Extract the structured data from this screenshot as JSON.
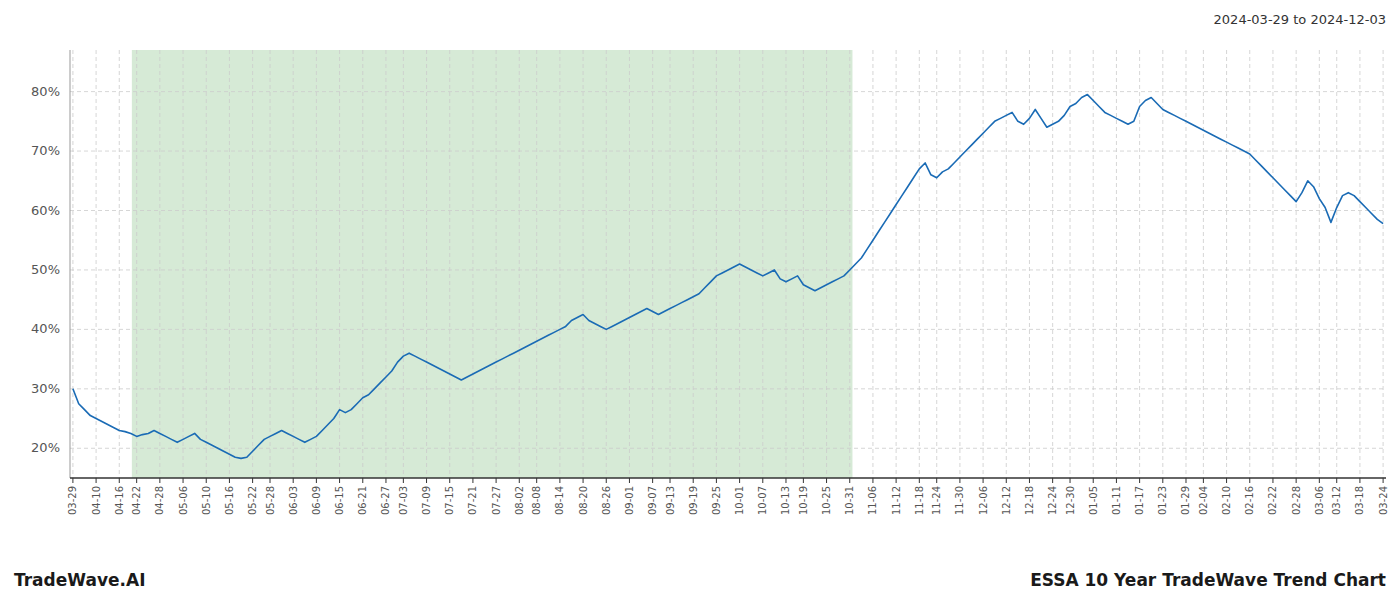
{
  "chart_data": {
    "type": "line",
    "title": "ESSA 10 Year TradeWave Trend Chart",
    "subtitle": "2024-03-29 to 2024-12-03",
    "annotations": [
      "TradeWave.AI"
    ],
    "color": "#1a6bb5",
    "grid": true,
    "ylim": [
      15,
      87
    ],
    "yticks": [
      {
        "value": 20,
        "label": "20%"
      },
      {
        "value": 30,
        "label": "30%"
      },
      {
        "value": 40,
        "label": "40%"
      },
      {
        "value": 50,
        "label": "50%"
      },
      {
        "value": 60,
        "label": "60%"
      },
      {
        "value": 70,
        "label": "70%"
      },
      {
        "value": 80,
        "label": "80%"
      }
    ],
    "shaded_region": {
      "from": 10.17,
      "to": 134.47,
      "color": "#d6ead6"
    },
    "categories": [
      "03-29",
      null,
      null,
      null,
      "04-10",
      null,
      null,
      null,
      "04-16",
      null,
      null,
      "04-22",
      null,
      null,
      null,
      "04-28",
      null,
      null,
      null,
      "05-06",
      null,
      null,
      null,
      "05-10",
      null,
      null,
      null,
      "05-16",
      null,
      null,
      null,
      "05-22",
      null,
      null,
      "05-28",
      null,
      null,
      null,
      "06-03",
      null,
      null,
      null,
      "06-09",
      null,
      null,
      null,
      "06-15",
      null,
      null,
      null,
      "06-21",
      null,
      null,
      null,
      "06-27",
      null,
      null,
      "07-03",
      null,
      null,
      null,
      "07-09",
      null,
      null,
      null,
      "07-15",
      null,
      null,
      null,
      "07-21",
      null,
      null,
      null,
      "07-27",
      null,
      null,
      null,
      "08-02",
      null,
      null,
      "08-08",
      null,
      null,
      null,
      "08-14",
      null,
      null,
      null,
      "08-20",
      null,
      null,
      null,
      "08-26",
      null,
      null,
      null,
      "09-01",
      null,
      null,
      null,
      "09-07",
      null,
      null,
      "09-13",
      null,
      null,
      null,
      "09-19",
      null,
      null,
      null,
      "09-25",
      null,
      null,
      null,
      "10-01",
      null,
      null,
      null,
      "10-07",
      null,
      null,
      null,
      "10-13",
      null,
      null,
      "10-19",
      null,
      null,
      null,
      "10-25",
      null,
      null,
      null,
      "10-31",
      null,
      null,
      null,
      "11-06",
      null,
      null,
      null,
      "11-12",
      null,
      null,
      null,
      "11-18",
      null,
      null,
      "11-24",
      null,
      null,
      null,
      "11-30",
      null,
      null,
      null,
      "12-06",
      null,
      null,
      null,
      "12-12",
      null,
      null,
      null,
      "12-18",
      null,
      null,
      null,
      "12-24",
      null,
      null,
      "12-30",
      null,
      null,
      null,
      "01-05",
      null,
      null,
      null,
      "01-11",
      null,
      null,
      null,
      "01-17",
      null,
      null,
      null,
      "01-23",
      null,
      null,
      null,
      "01-29",
      null,
      null,
      "02-04",
      null,
      null,
      null,
      "02-10",
      null,
      null,
      null,
      "02-16",
      null,
      null,
      null,
      "02-22",
      null,
      null,
      null,
      "02-28",
      null,
      null,
      null,
      "03-06",
      null,
      null,
      "03-12",
      null,
      null,
      null,
      "03-18",
      null,
      null,
      null,
      "03-24"
    ],
    "values": [
      30.0,
      27.5,
      26.5,
      25.5,
      25.0,
      24.5,
      24.0,
      23.5,
      23.0,
      22.8,
      22.5,
      22.0,
      22.3,
      22.5,
      23.0,
      22.5,
      22.0,
      21.5,
      21.0,
      21.5,
      22.0,
      22.5,
      21.5,
      21.0,
      20.5,
      20.0,
      19.5,
      19.0,
      18.5,
      18.3,
      18.5,
      19.5,
      20.5,
      21.5,
      22.0,
      22.5,
      23.0,
      22.5,
      22.0,
      21.5,
      21.0,
      21.5,
      22.0,
      23.0,
      24.0,
      25.0,
      26.5,
      26.0,
      26.5,
      27.5,
      28.5,
      29.0,
      30.0,
      31.0,
      32.0,
      33.0,
      34.5,
      35.5,
      36.0,
      35.5,
      35.0,
      34.5,
      34.0,
      33.5,
      33.0,
      32.5,
      32.0,
      31.5,
      32.0,
      32.5,
      33.0,
      33.5,
      34.0,
      34.5,
      35.0,
      35.5,
      36.0,
      36.5,
      37.0,
      37.5,
      38.0,
      38.5,
      39.0,
      39.5,
      40.0,
      40.5,
      41.5,
      42.0,
      42.5,
      41.5,
      41.0,
      40.5,
      40.0,
      40.5,
      41.0,
      41.5,
      42.0,
      42.5,
      43.0,
      43.5,
      43.0,
      42.5,
      43.0,
      43.5,
      44.0,
      44.5,
      45.0,
      45.5,
      46.0,
      47.0,
      48.0,
      49.0,
      49.5,
      50.0,
      50.5,
      51.0,
      50.5,
      50.0,
      49.5,
      49.0,
      49.5,
      50.0,
      48.5,
      48.0,
      48.5,
      49.0,
      47.5,
      47.0,
      46.5,
      47.0,
      47.5,
      48.0,
      48.5,
      49.0,
      50.0,
      51.0,
      52.0,
      53.5,
      55.0,
      56.5,
      58.0,
      59.5,
      61.0,
      62.5,
      64.0,
      65.5,
      67.0,
      68.0,
      66.0,
      65.5,
      66.5,
      67.0,
      68.0,
      69.0,
      70.0,
      71.0,
      72.0,
      73.0,
      74.0,
      75.0,
      75.5,
      76.0,
      76.5,
      75.0,
      74.5,
      75.5,
      77.0,
      75.5,
      74.0,
      74.5,
      75.0,
      76.0,
      77.5,
      78.0,
      79.0,
      79.5,
      78.5,
      77.5,
      76.5,
      76.0,
      75.5,
      75.0,
      74.5,
      75.0,
      77.5,
      78.5,
      79.0,
      78.0,
      77.0,
      76.5,
      76.0,
      75.5,
      75.0,
      74.5,
      74.0,
      73.5,
      73.0,
      72.5,
      72.0,
      71.5,
      71.0,
      70.5,
      70.0,
      69.5,
      68.5,
      67.5,
      66.5,
      65.5,
      64.5,
      63.5,
      62.5,
      61.5,
      63.0,
      65.0,
      64.0,
      62.0,
      60.5,
      58.0,
      60.5,
      62.5,
      63.0,
      62.5,
      61.5,
      60.5,
      59.5,
      58.5,
      57.8
    ]
  }
}
